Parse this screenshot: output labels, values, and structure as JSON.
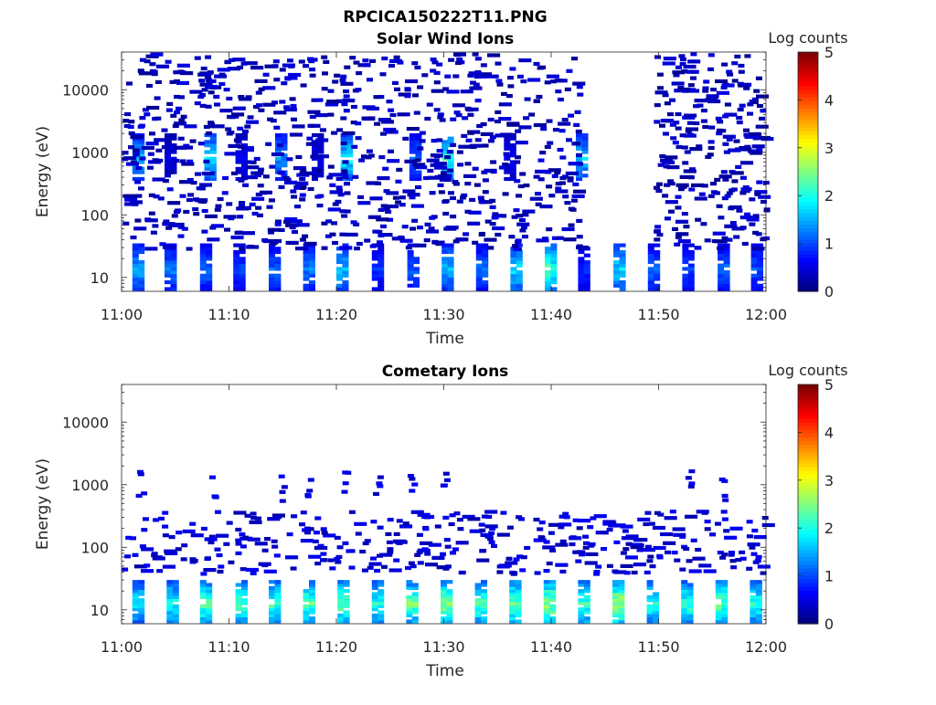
{
  "figure": {
    "title": "RPCICA150222T11.PNG"
  },
  "chart_data": [
    {
      "type": "heatmap",
      "title": "Solar Wind Ions",
      "xlabel": "Time",
      "ylabel": "Energy (eV)",
      "xlim": [
        "11:00",
        "12:00"
      ],
      "x_ticks": [
        "11:00",
        "11:10",
        "11:20",
        "11:30",
        "11:40",
        "11:50",
        "12:00"
      ],
      "y_scale": "log",
      "ylim": [
        6,
        40000
      ],
      "y_ticks": [
        {
          "value": 10,
          "label": "10"
        },
        {
          "value": 100,
          "label": "100"
        },
        {
          "value": 1000,
          "label": "1000"
        },
        {
          "value": 10000,
          "label": "10000"
        }
      ],
      "colorbar": {
        "label": "Log counts",
        "range": [
          0,
          5
        ],
        "ticks": [
          "0",
          "1",
          "2",
          "3",
          "4",
          "5"
        ],
        "colormap": "jet"
      },
      "background": "#ffffff",
      "grid": false,
      "features": [
        {
          "kind": "low_energy_bursts",
          "energy_range_eV": [
            7,
            35
          ],
          "times_min": [
            1,
            4,
            7.3,
            10.4,
            13.7,
            16.9,
            20,
            23.3,
            26.6,
            29.8,
            33,
            36.2,
            39.4,
            42.5,
            45.8,
            49,
            52.2,
            55.5,
            58.6
          ],
          "peak_log_counts": [
            1.5,
            1.3,
            1.2,
            1.0,
            1.2,
            1.3,
            1.7,
            0.9,
            1.1,
            1.6,
            1.2,
            1.8,
            2.3,
            0.9,
            1.8,
            1.2,
            1.0,
            1.2,
            1.1
          ]
        },
        {
          "kind": "solar_wind_peaks",
          "energy_eV": 900,
          "times_min": [
            1,
            4,
            7.7,
            10.6,
            14.3,
            17.7,
            20.4,
            26.8,
            29.8,
            35.6,
            42.3
          ],
          "peak_log_counts": [
            1.6,
            0.5,
            1.8,
            0.6,
            1.4,
            0.5,
            1.9,
            1.2,
            2.2,
            0.6,
            1.7
          ]
        },
        {
          "kind": "background_noise",
          "energy_range_eV": [
            30,
            40000
          ],
          "log_counts": 0.1,
          "gap_min": [
            42.5,
            49.5
          ]
        }
      ]
    },
    {
      "type": "heatmap",
      "title": "Cometary Ions",
      "xlabel": "Time",
      "ylabel": "Energy (eV)",
      "xlim": [
        "11:00",
        "12:00"
      ],
      "x_ticks": [
        "11:00",
        "11:10",
        "11:20",
        "11:30",
        "11:40",
        "11:50",
        "12:00"
      ],
      "y_scale": "log",
      "ylim": [
        6,
        40000
      ],
      "y_ticks": [
        {
          "value": 10,
          "label": "10"
        },
        {
          "value": 100,
          "label": "100"
        },
        {
          "value": 1000,
          "label": "1000"
        },
        {
          "value": 10000,
          "label": "10000"
        }
      ],
      "colorbar": {
        "label": "Log counts",
        "range": [
          0,
          5
        ],
        "ticks": [
          "0",
          "1",
          "2",
          "3",
          "4",
          "5"
        ],
        "colormap": "jet"
      },
      "background": "#ffffff",
      "grid": false,
      "features": [
        {
          "kind": "cometary_bursts",
          "energy_range_eV": [
            7,
            30
          ],
          "times_min": [
            1,
            4.2,
            7.3,
            10.6,
            13.7,
            16.9,
            20.1,
            23.3,
            26.5,
            29.7,
            32.9,
            36.1,
            39.3,
            42.5,
            45.7,
            48.9,
            52.1,
            55.3,
            58.5
          ],
          "peak_log_counts": [
            2.0,
            2.1,
            2.4,
            2.4,
            2.3,
            2.5,
            2.6,
            2.2,
            2.5,
            2.8,
            2.4,
            2.6,
            2.8,
            2.4,
            2.9,
            2.2,
            2.3,
            2.5,
            2.2
          ]
        },
        {
          "kind": "mid_energy_scatter",
          "energy_range_eV": [
            40,
            400
          ],
          "log_counts": 0.2
        },
        {
          "kind": "high_energy_spots",
          "energy_eV": 1000,
          "times_min": [
            1.3,
            8,
            14.6,
            17,
            20.4,
            23.4,
            26.6,
            29.6,
            52.4,
            55.6
          ],
          "log_counts": 0.3
        }
      ]
    }
  ]
}
